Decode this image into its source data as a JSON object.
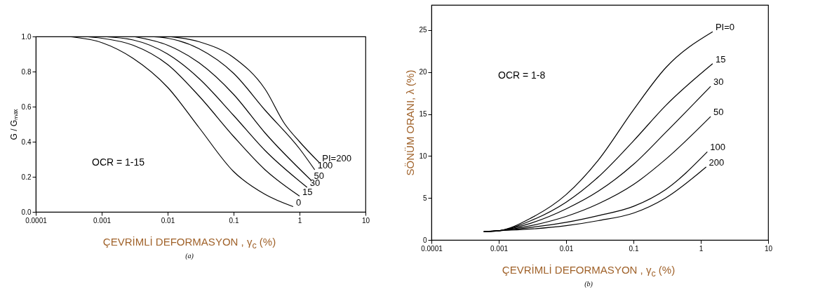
{
  "chart_data": [
    {
      "type": "line",
      "ylabel": "G / Gₘₐₓ",
      "xlabel": "ÇEVRİMLİ DEFORMASYON , γ$_{c}$ (%)",
      "log": "x",
      "grid": false,
      "legend": false,
      "marker": "none",
      "line_style": "solid",
      "xlim": [
        0.0001,
        10
      ],
      "xticks": [
        0.0001,
        0.001,
        0.01,
        0.1,
        1,
        10
      ],
      "ylim": [
        0,
        1
      ],
      "yticks": [
        {
          "value": 0,
          "label": "0.0"
        },
        {
          "value": 0.2,
          "label": "0.2"
        },
        {
          "value": 0.4,
          "label": "0.4"
        },
        {
          "value": 0.6,
          "label": "0.6"
        },
        {
          "value": 0.8,
          "label": "0.8"
        },
        {
          "value": 1,
          "label": "1.0"
        }
      ],
      "annotations": [
        "OCR = 1-15",
        "(a)"
      ],
      "series": [
        {
          "name": "0",
          "color": "#000000",
          "x": [
            0.0003,
            0.001,
            0.003,
            0.01,
            0.03,
            0.1,
            0.3,
            0.8
          ],
          "values": [
            1.0,
            0.965,
            0.875,
            0.71,
            0.48,
            0.23,
            0.1,
            0.03
          ]
        },
        {
          "name": "15",
          "color": "#000000",
          "x": [
            0.0005,
            0.001,
            0.003,
            0.01,
            0.03,
            0.1,
            0.3,
            1.0
          ],
          "values": [
            1.0,
            0.99,
            0.95,
            0.84,
            0.66,
            0.43,
            0.24,
            0.09
          ]
        },
        {
          "name": "30",
          "color": "#000000",
          "x": [
            0.001,
            0.003,
            0.01,
            0.03,
            0.1,
            0.3,
            1.3
          ],
          "values": [
            1.0,
            0.98,
            0.9,
            0.76,
            0.55,
            0.35,
            0.14
          ]
        },
        {
          "name": "50",
          "color": "#000000",
          "x": [
            0.003,
            0.01,
            0.03,
            0.1,
            0.3,
            1.5
          ],
          "values": [
            1.0,
            0.95,
            0.85,
            0.67,
            0.45,
            0.18
          ]
        },
        {
          "name": "100",
          "color": "#000000",
          "x": [
            0.005,
            0.01,
            0.03,
            0.1,
            0.3,
            1.0,
            1.7
          ],
          "values": [
            1.0,
            0.99,
            0.93,
            0.79,
            0.58,
            0.36,
            0.24
          ]
        },
        {
          "name": "PI=200",
          "color": "#000000",
          "x": [
            0.01,
            0.03,
            0.1,
            0.3,
            0.6,
            1.0,
            2.0
          ],
          "values": [
            1.0,
            0.97,
            0.88,
            0.7,
            0.5,
            0.4,
            0.28
          ]
        }
      ]
    },
    {
      "type": "line",
      "ylabel": "SÖNÜM ORANI, λ (%)",
      "xlabel": "ÇEVRİMLİ DEFORMASYON , γ$_{c}$ (%)",
      "log": "x",
      "grid": false,
      "legend": false,
      "marker": "none",
      "line_style": "solid",
      "xlim": [
        0.0001,
        10
      ],
      "xticks": [
        0.0001,
        0.001,
        0.01,
        0.1,
        1,
        10
      ],
      "ylim": [
        0,
        28
      ],
      "yticks": [
        0,
        5,
        10,
        15,
        20,
        25
      ],
      "annotations": [
        "OCR = 1-8",
        "(b)"
      ],
      "series": [
        {
          "name": "PI=0",
          "color": "#000000",
          "x": [
            0.0006,
            0.001,
            0.003,
            0.01,
            0.03,
            0.1,
            0.3,
            1.5
          ],
          "values": [
            1.0,
            1.1,
            2.6,
            5.4,
            9.5,
            15.5,
            20.5,
            24.8
          ]
        },
        {
          "name": "15",
          "color": "#000000",
          "x": [
            0.0006,
            0.001,
            0.003,
            0.01,
            0.03,
            0.1,
            0.3,
            1.5
          ],
          "values": [
            1.0,
            1.1,
            2.3,
            4.5,
            7.5,
            11.8,
            16,
            21
          ]
        },
        {
          "name": "30",
          "color": "#000000",
          "x": [
            0.0006,
            0.001,
            0.003,
            0.01,
            0.03,
            0.1,
            0.3,
            1.4
          ],
          "values": [
            1.0,
            1.1,
            2.0,
            3.7,
            5.8,
            9.0,
            12.8,
            18.3
          ]
        },
        {
          "name": "50",
          "color": "#000000",
          "x": [
            0.0006,
            0.001,
            0.003,
            0.01,
            0.03,
            0.1,
            0.3,
            1.4
          ],
          "values": [
            1.0,
            1.1,
            1.7,
            2.8,
            4.3,
            6.6,
            9.6,
            14.7
          ]
        },
        {
          "name": "100",
          "color": "#000000",
          "x": [
            0.0006,
            0.001,
            0.003,
            0.01,
            0.03,
            0.1,
            0.3,
            1.25
          ],
          "values": [
            1.0,
            1.1,
            1.5,
            2.1,
            2.9,
            4.0,
            6.0,
            10.5
          ]
        },
        {
          "name": "200",
          "color": "#000000",
          "x": [
            0.0006,
            0.001,
            0.003,
            0.01,
            0.03,
            0.1,
            0.3,
            1.2
          ],
          "values": [
            1.0,
            1.1,
            1.3,
            1.7,
            2.3,
            3.2,
            5.0,
            8.7
          ]
        }
      ]
    }
  ]
}
